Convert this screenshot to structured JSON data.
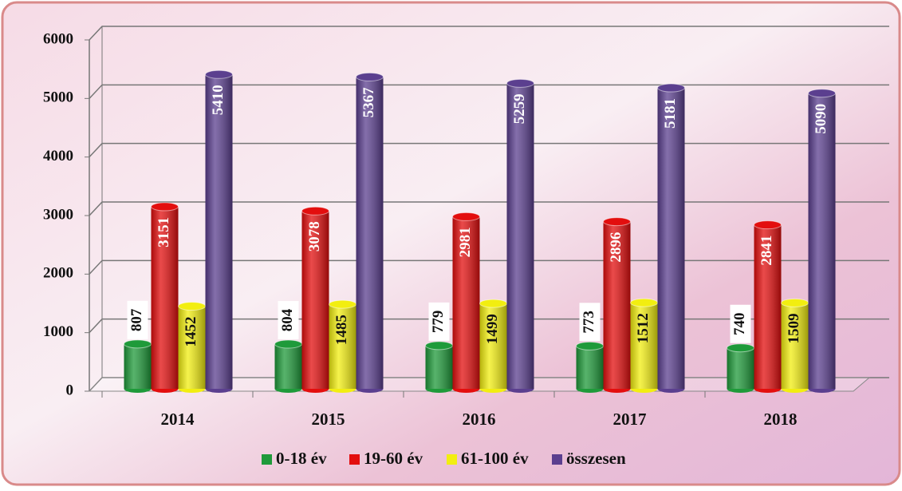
{
  "chart_data": {
    "type": "bar",
    "categories": [
      "2014",
      "2015",
      "2016",
      "2017",
      "2018"
    ],
    "series": [
      {
        "name": "0-18 év",
        "color": "#1f9a3a",
        "values": [
          807,
          804,
          779,
          773,
          740
        ]
      },
      {
        "name": "19-60 év",
        "color": "#e30e0e",
        "values": [
          3151,
          3078,
          2981,
          2896,
          2841
        ]
      },
      {
        "name": "61-100 év",
        "color": "#f2ee10",
        "values": [
          1452,
          1485,
          1499,
          1512,
          1509
        ]
      },
      {
        "name": "összesen",
        "color": "#5b3f8f",
        "values": [
          5410,
          5367,
          5259,
          5181,
          5090
        ]
      }
    ],
    "ylim": [
      0,
      6000
    ],
    "yticks": [
      0,
      1000,
      2000,
      3000,
      4000,
      5000,
      6000
    ],
    "grid": true,
    "legend": "bottom"
  }
}
